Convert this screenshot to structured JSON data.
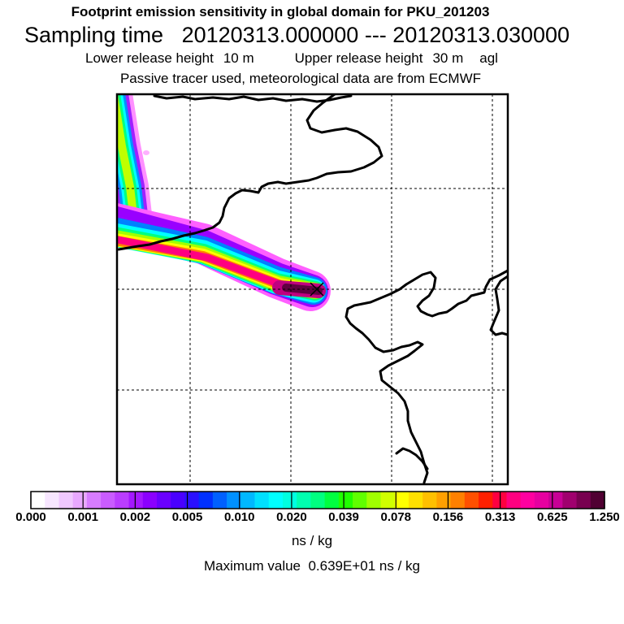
{
  "header": {
    "title": "Footprint emission sensitivity in global domain for PKU_201203",
    "sampling_label": "Sampling time",
    "sampling_range": "20120313.000000 --- 20120313.030000",
    "lower_label": "Lower release height",
    "lower_value": "10 m",
    "upper_label": "Upper release height",
    "upper_value": "30 m",
    "height_ref": "agl",
    "subtitle": "Passive tracer used, meteorological data are from ECMWF"
  },
  "colorbar": {
    "labels": [
      "0.000",
      "0.001",
      "0.002",
      "0.005",
      "0.010",
      "0.020",
      "0.039",
      "0.078",
      "0.156",
      "0.313",
      "0.625",
      "1.250"
    ],
    "colors": [
      "#ffffff",
      "#f7e6ff",
      "#f0c8ff",
      "#e8a8ff",
      "#d77cff",
      "#c95cff",
      "#ba3dff",
      "#a418ff",
      "#8b00ff",
      "#6a00ff",
      "#4a00ff",
      "#2a10ff",
      "#0030ff",
      "#0060ff",
      "#0090ff",
      "#00b8ff",
      "#00e0ff",
      "#00ffff",
      "#00ffe0",
      "#00ffb0",
      "#00ff80",
      "#00ff40",
      "#20ff00",
      "#60ff00",
      "#a0ff00",
      "#d0ff00",
      "#ffff00",
      "#ffe000",
      "#ffc000",
      "#ffa000",
      "#ff8000",
      "#ff5000",
      "#ff2000",
      "#ff0040",
      "#ff0080",
      "#ff00a0",
      "#e600a0",
      "#c80096",
      "#a0006e",
      "#780050",
      "#500032"
    ],
    "units": "ns / kg"
  },
  "max_label": "Maximum value",
  "max_value": "0.639E+01",
  "max_units": "ns / kg",
  "plume": {
    "colors": [
      "#ff60ff",
      "#9900ff",
      "#0080ff",
      "#00ffff",
      "#00ff80",
      "#a0ff00",
      "#ffff00",
      "#ff8000",
      "#ff0080",
      "#c00080",
      "#600040"
    ]
  }
}
